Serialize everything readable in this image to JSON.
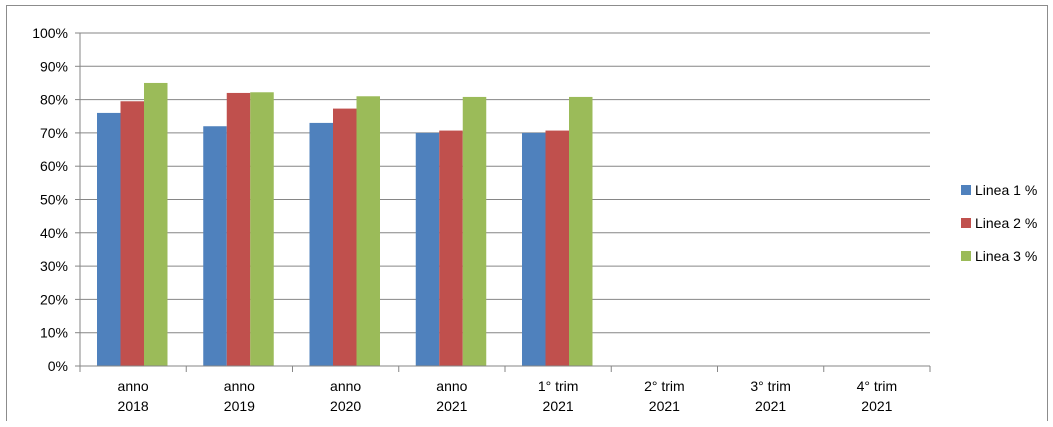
{
  "chart_data": {
    "type": "bar",
    "categories": [
      [
        "anno",
        "2018"
      ],
      [
        "anno",
        "2019"
      ],
      [
        "anno",
        "2020"
      ],
      [
        "anno",
        "2021"
      ],
      [
        "1° trim",
        "2021"
      ],
      [
        "2° trim",
        "2021"
      ],
      [
        "3° trim",
        "2021"
      ],
      [
        "4° trim",
        "2021"
      ]
    ],
    "series": [
      {
        "name": "Linea 1 %",
        "color": "#4f81bd",
        "values": [
          76,
          72,
          73,
          70,
          70,
          null,
          null,
          null
        ]
      },
      {
        "name": "Linea 2 %",
        "color": "#c0504d",
        "values": [
          79.5,
          82,
          77.3,
          70.7,
          70.7,
          null,
          null,
          null
        ]
      },
      {
        "name": "Linea 3 %",
        "color": "#9bbb59",
        "values": [
          85,
          82.2,
          81,
          80.8,
          80.8,
          null,
          null,
          null
        ]
      }
    ],
    "ylim": [
      0,
      100
    ],
    "yticks": [
      "0%",
      "10%",
      "20%",
      "30%",
      "40%",
      "50%",
      "60%",
      "70%",
      "80%",
      "90%",
      "100%"
    ],
    "grid": true,
    "legend_position": "right",
    "title": "",
    "xlabel": "",
    "ylabel": ""
  }
}
